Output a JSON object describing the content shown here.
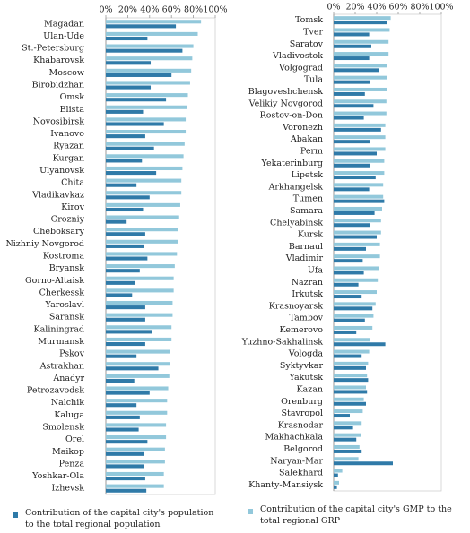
{
  "chart_data": [
    {
      "type": "bar",
      "orientation": "horizontal",
      "categories": [
        "Magadan",
        "Ulan-Ude",
        "St.-Petersburg",
        "Khabarovsk",
        "Moscow",
        "Birobidzhan",
        "Omsk",
        "Elista",
        "Novosibirsk",
        "Ivanovo",
        "Ryazan",
        "Kurgan",
        "Ulyanovsk",
        "Chita",
        "Vladikavkaz",
        "Kirov",
        "Grozniy",
        "Cheboksary",
        "Nizhniy Novgorod",
        "Kostroma",
        "Bryansk",
        "Gorno-Altaisk",
        "Cherkessk",
        "Yaroslavl",
        "Saransk",
        "Kaliningrad",
        "Murmansk",
        "Pskov",
        "Astrakhan",
        "Anadyr",
        "Petrozavodsk",
        "Nalchik",
        "Kaluga",
        "Smolensk",
        "Orel",
        "Maikop",
        "Penza",
        "Yoshkar-Ola",
        "Izhevsk"
      ],
      "series": [
        {
          "name": "Contribution of the capital city's population to the total regional population",
          "color": "#2f7aa8",
          "values": [
            64,
            38,
            70,
            41,
            60,
            41,
            55,
            34,
            53,
            36,
            44,
            33,
            46,
            28,
            40,
            34,
            19,
            36,
            35,
            38,
            31,
            27,
            24,
            36,
            36,
            42,
            36,
            28,
            48,
            26,
            40,
            28,
            31,
            30,
            38,
            35,
            35,
            36,
            37
          ]
        },
        {
          "name": "Contribution of the capital city's GMP to the total regional GRP",
          "color": "#92c8db",
          "values": [
            87,
            84,
            80,
            79,
            78,
            77,
            75,
            74,
            73,
            73,
            72,
            71,
            70,
            69,
            69,
            68,
            67,
            66,
            66,
            65,
            63,
            62,
            62,
            61,
            61,
            60,
            60,
            59,
            59,
            58,
            57,
            56,
            56,
            55,
            55,
            54,
            54,
            53,
            53
          ]
        }
      ],
      "xlim": [
        0,
        100
      ],
      "xticks": [
        {
          "value": 0,
          "label": "0%"
        },
        {
          "value": 20,
          "label": "20%"
        },
        {
          "value": 40,
          "label": "40%"
        },
        {
          "value": 60,
          "label": "60%"
        },
        {
          "value": 80,
          "label": "80%"
        },
        {
          "value": 100,
          "label": "100%"
        }
      ]
    },
    {
      "type": "bar",
      "orientation": "horizontal",
      "categories": [
        "Tomsk",
        "Tver",
        "Saratov",
        "Vladivostok",
        "Volgograd",
        "Tula",
        "Blagoveshchensk",
        "Velikiy Novgorod",
        "Rostov-on-Don",
        "Voronezh",
        "Abakan",
        "Perm",
        "Yekaterinburg",
        "Lipetsk",
        "Arkhangelsk",
        "Tumen",
        "Samara",
        "Chelyabinsk",
        "Kursk",
        "Barnaul",
        "Vladimir",
        "Ufa",
        "Nazran",
        "Irkutsk",
        "Krasnoyarsk",
        "Tambov",
        "Kemerovo",
        "Yuzhno-Sakhalinsk",
        "Vologda",
        "Syktyvkar",
        "Yakutsk",
        "Kazan",
        "Orenburg",
        "Stavropol",
        "Krasnodar",
        "Makhachkala",
        "Belgorod",
        "Naryan-Mar",
        "Salekhard",
        "Khanty-Mansiysk"
      ],
      "series": [
        {
          "color": "#2f7aa8",
          "values": [
            50,
            33,
            35,
            33,
            42,
            34,
            29,
            37,
            28,
            44,
            34,
            40,
            34,
            39,
            33,
            47,
            38,
            34,
            40,
            30,
            27,
            28,
            23,
            26,
            36,
            29,
            21,
            48,
            26,
            30,
            32,
            31,
            30,
            15,
            18,
            21,
            26,
            55,
            4,
            3
          ]
        },
        {
          "color": "#92c8db",
          "values": [
            53,
            52,
            51,
            51,
            50,
            50,
            50,
            49,
            49,
            48,
            48,
            48,
            47,
            47,
            46,
            46,
            45,
            44,
            44,
            43,
            43,
            42,
            41,
            40,
            39,
            37,
            36,
            34,
            33,
            32,
            31,
            30,
            28,
            27,
            26,
            25,
            24,
            23,
            8,
            5
          ]
        }
      ],
      "xlim": [
        0,
        100
      ],
      "xticks": [
        {
          "value": 0,
          "label": "0%"
        },
        {
          "value": 20,
          "label": "20%"
        },
        {
          "value": 40,
          "label": "40%"
        },
        {
          "value": 60,
          "label": "60%"
        },
        {
          "value": 80,
          "label": "80%"
        },
        {
          "value": 100,
          "label": "100%"
        }
      ]
    }
  ]
}
